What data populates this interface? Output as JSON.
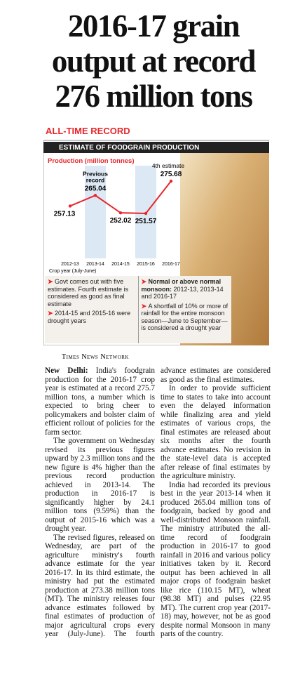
{
  "headline": [
    "2016-17 grain",
    "output at record",
    "276 million tons"
  ],
  "chart_data": {
    "type": "line",
    "label": "ALL-TIME RECORD",
    "title": "ESTIMATE OF FOODGRAIN PRODUCTION",
    "subtitle": "Production (million tonnes)",
    "categories": [
      "2012-13",
      "2013-14",
      "2014-15",
      "2015-16",
      "2016-17"
    ],
    "values": [
      257.13,
      265.04,
      252.02,
      251.57,
      275.68
    ],
    "color": "#e8262b",
    "highlight": [
      1,
      3
    ],
    "x_label": "Crop year (July-June)",
    "annotations": [
      {
        "index": 1,
        "text": "Previous record"
      },
      {
        "index": 4,
        "text": "4th estimate"
      }
    ]
  },
  "notes": {
    "left": [
      "Govt comes out with five estimates. Fourth estimate is considered as good as final estimate",
      "2014-15 and 2015-16 were drought years"
    ],
    "right": [
      {
        "bold": "Normal or above normal monsoon:",
        "text": "2012-13, 2013-14 and 2016-17"
      },
      {
        "bold": "",
        "text": "A shortfall of 10% or more of rainfall for the entire monsoon season—June to September—is considered a drought year"
      }
    ]
  },
  "byline": "Times News Network",
  "article": {
    "dateline": "New Delhi:",
    "paragraphs": [
      "India's foodgrain production for the 2016-17 crop year is estimated at a record 275.7 million tons, a number which is expected to bring cheer to policymakers and bolster claim of efficient rollout of policies for the farm sector.",
      "The government on Wednesday revised its previous figures upward by 2.3 million tons and the new figure is 4% higher than the previous record production achieved in 2013-14. The production in 2016-17 is significantly higher by 24.1 million tons (9.59%) than the output of 2015-16 which was a drought year.",
      "The revised figures, released on Wednesday, are part of the agriculture ministry's fourth advance estimate for the year 2016-17. In its third estimate, the ministry had put the estimated production at 273.38 million tons (MT). The ministry releases four advance estimates followed by final estimates of production of major agricultural crops every year (July-June). The fourth advance estimates are considered as good as the final estimates.",
      "In order to provide sufficient time to states to take into account even the delayed information while finalizing area and yield estimates of various crops, the final estimates are released about six months after the fourth advance estimates. No revision in the state-level data is accepted after release of final estimates by the agriculture ministry.",
      "India had recorded its previous best in the year 2013-14 when it produced 265.04 million tons of foodgrain, backed by good and well-distributed Monsoon rainfall. The ministry attributed the all-time record of foodgrain production in 2016-17 to good rainfall in 2016 and various policy initiatives taken by it. Record output has been achieved in all major crops of foodgrain basket like rice (110.15 MT), wheat (98.38 MT) and pulses (22.95 MT). The current crop year (2017-18) may, however, not be as good despite normal Monsoon in many parts of the country."
    ]
  }
}
